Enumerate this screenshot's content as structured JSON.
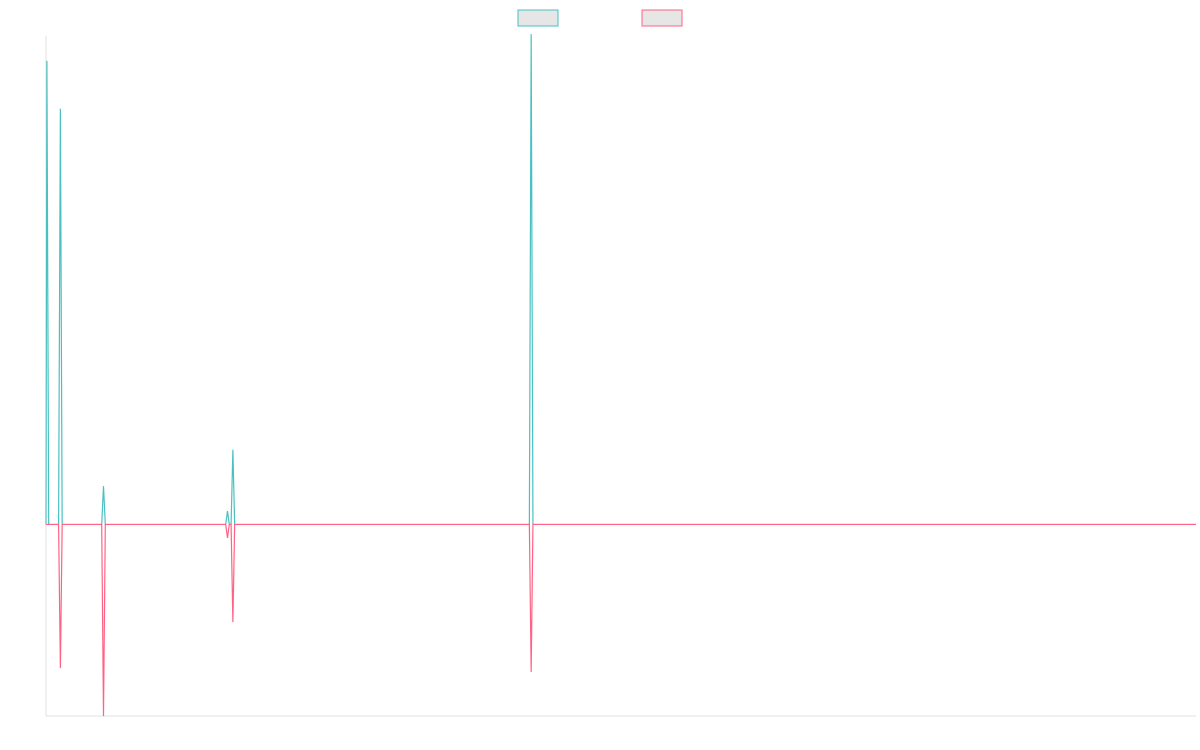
{
  "chart_data": {
    "type": "line",
    "title": "",
    "xlabel": "",
    "ylabel": "",
    "grid": false,
    "legend_placement": "top-center",
    "xlim": [
      0,
      640
    ],
    "ylim": [
      -100,
      255
    ],
    "series": [
      {
        "color": "#4bc0c0",
        "legend_fill": "#e6e6e6",
        "points": [
          [
            0,
            0
          ],
          [
            0.5,
            242
          ],
          [
            1.5,
            0
          ],
          [
            7,
            0
          ],
          [
            8,
            217
          ],
          [
            9,
            0
          ],
          [
            31,
            0
          ],
          [
            32,
            20
          ],
          [
            33,
            0
          ],
          [
            100,
            0
          ],
          [
            101,
            7
          ],
          [
            102,
            0
          ],
          [
            103,
            0
          ],
          [
            104,
            39
          ],
          [
            105,
            0
          ],
          [
            269,
            0
          ],
          [
            270,
            256
          ],
          [
            271,
            0
          ],
          [
            640,
            0
          ]
        ]
      },
      {
        "color": "#ff6384",
        "legend_fill": "#e6e6e6",
        "points": [
          [
            0,
            0
          ],
          [
            1.5,
            0
          ],
          [
            7,
            0
          ],
          [
            8,
            -75
          ],
          [
            9,
            0
          ],
          [
            31,
            0
          ],
          [
            32,
            -100
          ],
          [
            33,
            0
          ],
          [
            100,
            0
          ],
          [
            101,
            -7
          ],
          [
            102,
            0
          ],
          [
            103,
            0
          ],
          [
            104,
            -51
          ],
          [
            105,
            0
          ],
          [
            269,
            0
          ],
          [
            270,
            -77
          ],
          [
            271,
            0
          ],
          [
            640,
            0
          ]
        ]
      }
    ]
  }
}
